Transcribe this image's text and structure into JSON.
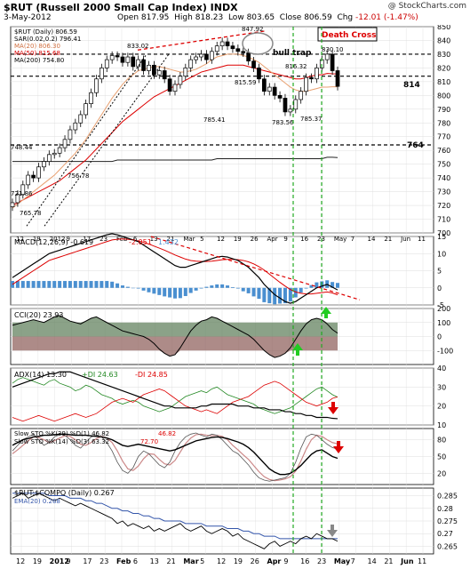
{
  "header": {
    "symbol_line": "$RUT (Russell 2000 Small Cap Index) INDX",
    "watermark": "@ StockCharts.com",
    "date": "3-May-2012",
    "open_label": "Open",
    "open": "817.95",
    "high_label": "High",
    "high": "818.23",
    "low_label": "Low",
    "low": "803.65",
    "close_label": "Close",
    "close": "806.59",
    "chg_label": "Chg",
    "chg": "-12.01 (-1.47%)"
  },
  "x_labels": [
    "12",
    "19",
    "2012",
    "9",
    "17",
    "23",
    "Feb",
    "6",
    "13",
    "21",
    "Mar",
    "5",
    "12",
    "19",
    "26",
    "Apr",
    "9",
    "16",
    "23",
    "May",
    "7",
    "14",
    "21",
    "Jun",
    "11"
  ],
  "colors": {
    "price_up": "#000000",
    "red_line": "#dd0000",
    "green_line": "#22aa22",
    "hist": "#4a8fd0",
    "grid": "#dddddd"
  },
  "chart_data": [
    {
      "type": "candlestick",
      "panel": "price",
      "legend": [
        "$RUT (Daily) 806.59",
        "SAR(0.02,0.2) 796.41",
        "MA(20) 806.30",
        "MA(50) 815.68",
        "MA(200) 754.80"
      ],
      "ylim": [
        700,
        850
      ],
      "yticks": [
        700,
        710,
        720,
        730,
        740,
        750,
        760,
        770,
        780,
        790,
        800,
        810,
        820,
        830,
        840,
        850
      ],
      "annotations": [
        "bull trap",
        "Death Cross",
        "814",
        "764",
        "833.02",
        "847.92",
        "830.10",
        "815.59",
        "816.32",
        "785.41",
        "783.56",
        "785.37",
        "748.44",
        "765.78",
        "721.86",
        "756.78"
      ],
      "horizontal_levels": [
        830,
        814,
        764
      ],
      "closes": [
        722,
        728,
        735,
        742,
        740,
        748,
        752,
        757,
        758,
        762,
        768,
        775,
        780,
        786,
        794,
        802,
        812,
        820,
        826,
        829,
        828,
        824,
        828,
        821,
        826,
        818,
        822,
        815,
        818,
        812,
        803,
        808,
        814,
        820,
        826,
        828,
        830,
        826,
        832,
        836,
        839,
        836,
        834,
        832,
        831,
        825,
        820,
        812,
        803,
        806,
        800,
        798,
        788,
        790,
        797,
        803,
        813,
        812,
        820,
        826,
        830,
        818,
        806.59
      ],
      "ma20": [
        718,
        721,
        724,
        727,
        730,
        733,
        736,
        739,
        742,
        746,
        750,
        754,
        758,
        763,
        768,
        774,
        780,
        786,
        792,
        798,
        803,
        808,
        812,
        815,
        818,
        819,
        820,
        821,
        821,
        820,
        819,
        818,
        817,
        817,
        818,
        819,
        821,
        823,
        826,
        828,
        829,
        830,
        830,
        830,
        829,
        828,
        826,
        824,
        821,
        818,
        815,
        812,
        809,
        806,
        804,
        803,
        803,
        804,
        805,
        806,
        806,
        806.3,
        806.3
      ],
      "ma50": [
        720,
        722,
        724,
        726,
        728,
        730,
        732,
        734,
        736,
        738,
        741,
        744,
        747,
        750,
        753,
        757,
        761,
        765,
        769,
        773,
        777,
        781,
        784,
        787,
        790,
        793,
        796,
        799,
        801,
        803,
        805,
        807,
        809,
        811,
        813,
        815,
        817,
        818,
        819,
        820,
        821,
        822,
        822,
        822,
        822,
        821,
        820,
        819,
        818,
        817,
        816,
        815,
        814,
        813,
        812,
        812,
        813,
        814,
        815,
        815,
        816,
        815.7,
        815.68
      ],
      "ma200": [
        752,
        752,
        752,
        752,
        752,
        752,
        752,
        752,
        752,
        752,
        752,
        752,
        752,
        752,
        752,
        752,
        752,
        752,
        752,
        752,
        753,
        753,
        753,
        753,
        753,
        753,
        753,
        753,
        753,
        753,
        753,
        753,
        753,
        753,
        753,
        753,
        753,
        753,
        753,
        754,
        754,
        754,
        754,
        754,
        754,
        754,
        754,
        754,
        754,
        754,
        754,
        754,
        754,
        754,
        754,
        754,
        754,
        754,
        754,
        754,
        755,
        755,
        754.8
      ]
    },
    {
      "type": "line",
      "panel": "macd",
      "legend": [
        "MACD(12,26,9) -0.619",
        "-2.051",
        "1.432"
      ],
      "ylim": [
        -5,
        15
      ],
      "yticks": [
        -5,
        0,
        5,
        10,
        15
      ],
      "macd": [
        3,
        4,
        5,
        6,
        7,
        8,
        9,
        10,
        10.5,
        11,
        11.5,
        12,
        12.5,
        13,
        13.5,
        14,
        14.5,
        15,
        15.5,
        15.8,
        15.5,
        15,
        14.5,
        14,
        13.5,
        12.5,
        11.5,
        10.5,
        9.5,
        8.5,
        7.5,
        6.5,
        6,
        6,
        6.5,
        7,
        7.5,
        8,
        8.5,
        9,
        9.2,
        9,
        8.5,
        8,
        7,
        6,
        4.5,
        3,
        1,
        -0.5,
        -2,
        -3,
        -4,
        -4.5,
        -4,
        -3,
        -2,
        -1,
        0,
        0.5,
        1,
        0.2,
        -0.619
      ],
      "signal": [
        1,
        2,
        3,
        4,
        5,
        6,
        7,
        8,
        8.5,
        9,
        9.5,
        10,
        10.5,
        11,
        11.5,
        12,
        12.5,
        13,
        13.5,
        14,
        14.2,
        14.3,
        14.2,
        14,
        13.7,
        13.3,
        12.8,
        12.2,
        11.6,
        11,
        10.3,
        9.6,
        9,
        8.4,
        8,
        7.8,
        7.7,
        7.7,
        7.8,
        8,
        8.2,
        8.3,
        8.3,
        8.2,
        8,
        7.6,
        7,
        6.2,
        5.2,
        4,
        2.8,
        1.6,
        0.5,
        -0.5,
        -1.2,
        -1.6,
        -1.8,
        -1.8,
        -1.6,
        -1.4,
        -1.2,
        -1.5,
        -2.051
      ],
      "histogram": [
        2,
        2,
        2,
        2,
        2,
        2,
        2,
        2,
        2,
        2,
        2,
        2,
        2,
        2,
        2,
        2,
        2,
        2,
        2,
        1.8,
        1.3,
        0.7,
        0.3,
        0,
        -0.2,
        -0.8,
        -1.3,
        -1.7,
        -2.1,
        -2.5,
        -2.8,
        -3.1,
        -3,
        -2.4,
        -1.5,
        -0.8,
        -0.2,
        0.3,
        0.7,
        1,
        1,
        0.7,
        0.2,
        -0.2,
        -1,
        -1.6,
        -2.5,
        -3.2,
        -4.2,
        -4.5,
        -4.8,
        -4.6,
        -4.5,
        -4,
        -2.8,
        -1.4,
        -0.2,
        0.8,
        1.6,
        1.9,
        2.2,
        1.7,
        1.432
      ]
    },
    {
      "type": "line",
      "panel": "cci",
      "legend": [
        "CCI(20) 23.93"
      ],
      "ylim": [
        -200,
        200
      ],
      "yticks": [
        -100,
        0,
        100,
        200
      ],
      "values": [
        80,
        90,
        100,
        110,
        120,
        110,
        100,
        120,
        140,
        150,
        130,
        110,
        100,
        90,
        110,
        130,
        140,
        120,
        100,
        80,
        60,
        40,
        30,
        20,
        10,
        0,
        -20,
        -50,
        -90,
        -120,
        -140,
        -130,
        -80,
        -20,
        40,
        80,
        110,
        120,
        140,
        130,
        110,
        90,
        70,
        50,
        30,
        10,
        -20,
        -60,
        -100,
        -130,
        -150,
        -140,
        -120,
        -80,
        -20,
        40,
        90,
        120,
        130,
        120,
        90,
        50,
        23.93
      ]
    },
    {
      "type": "line",
      "panel": "adx",
      "legend": [
        "ADX(14) 13.30",
        "+DI 24.63",
        "-DI 24.85"
      ],
      "ylim": [
        10,
        40
      ],
      "yticks": [
        10,
        20,
        30,
        40
      ],
      "adx": [
        30,
        31,
        32,
        33,
        34,
        35,
        36,
        37,
        37,
        38,
        38,
        38,
        37,
        36,
        35,
        34,
        33,
        32,
        31,
        30,
        29,
        28,
        27,
        26,
        25,
        24,
        23,
        22,
        21,
        20,
        20,
        19,
        19,
        19,
        19,
        19,
        20,
        20,
        21,
        21,
        21,
        21,
        21,
        20,
        20,
        20,
        19,
        19,
        19,
        18,
        18,
        18,
        17,
        17,
        16,
        16,
        15,
        15,
        14,
        14,
        14,
        13.5,
        13.3
      ],
      "plus_di": [
        32,
        34,
        35,
        34,
        33,
        32,
        31,
        33,
        34,
        32,
        31,
        30,
        28,
        29,
        31,
        30,
        28,
        26,
        25,
        24,
        22,
        21,
        22,
        23,
        22,
        20,
        19,
        18,
        17,
        18,
        19,
        21,
        23,
        25,
        26,
        27,
        28,
        27,
        29,
        30,
        28,
        26,
        25,
        24,
        23,
        22,
        21,
        19,
        18,
        17,
        16,
        17,
        18,
        19,
        21,
        23,
        25,
        27,
        29,
        30,
        28,
        26,
        24.63
      ],
      "minus_di": [
        14,
        13,
        12,
        13,
        14,
        15,
        14,
        13,
        12,
        13,
        14,
        15,
        16,
        15,
        14,
        15,
        16,
        18,
        20,
        22,
        23,
        24,
        23,
        22,
        24,
        26,
        27,
        28,
        29,
        28,
        26,
        24,
        22,
        20,
        19,
        18,
        17,
        18,
        17,
        16,
        18,
        20,
        22,
        23,
        24,
        25,
        27,
        29,
        31,
        32,
        33,
        32,
        30,
        28,
        26,
        24,
        22,
        21,
        20,
        21,
        22,
        24,
        24.85
      ]
    },
    {
      "type": "line",
      "panel": "slowsto",
      "legend": [
        "Slow STO %K(39) %D(1) 46.82",
        "46.82",
        "Slow STO %K(14) %D(3) 63.32",
        "72.70"
      ],
      "ylim": [
        0,
        100
      ],
      "yticks": [
        20,
        50,
        80
      ],
      "sto39": [
        70,
        75,
        80,
        82,
        85,
        86,
        88,
        88,
        89,
        90,
        90,
        89,
        88,
        88,
        88,
        87,
        86,
        85,
        83,
        80,
        75,
        70,
        68,
        70,
        72,
        70,
        68,
        66,
        64,
        62,
        60,
        62,
        66,
        70,
        74,
        78,
        80,
        82,
        84,
        85,
        84,
        82,
        79,
        76,
        72,
        66,
        58,
        48,
        38,
        28,
        22,
        18,
        18,
        20,
        26,
        34,
        44,
        54,
        60,
        62,
        56,
        50,
        46.82
      ],
      "sto14_k": [
        60,
        70,
        80,
        85,
        90,
        80,
        70,
        75,
        85,
        90,
        88,
        80,
        70,
        65,
        75,
        85,
        88,
        85,
        75,
        60,
        40,
        25,
        20,
        30,
        50,
        60,
        55,
        45,
        35,
        30,
        40,
        60,
        75,
        85,
        90,
        92,
        88,
        85,
        90,
        88,
        80,
        70,
        60,
        55,
        45,
        35,
        22,
        12,
        8,
        6,
        8,
        10,
        12,
        20,
        40,
        65,
        85,
        90,
        88,
        80,
        72,
        66,
        63.32
      ],
      "sto14_d": [
        55,
        62,
        70,
        78,
        85,
        84,
        80,
        75,
        78,
        83,
        87,
        86,
        80,
        72,
        70,
        75,
        82,
        86,
        83,
        75,
        60,
        42,
        28,
        25,
        33,
        46,
        55,
        54,
        45,
        37,
        35,
        43,
        58,
        73,
        83,
        89,
        90,
        88,
        87,
        88,
        86,
        80,
        70,
        62,
        53,
        45,
        34,
        23,
        14,
        9,
        7,
        8,
        10,
        14,
        24,
        42,
        63,
        80,
        88,
        86,
        80,
        75,
        72.7
      ]
    },
    {
      "type": "line",
      "panel": "ratio",
      "legend": [
        "$RUT:$COMPQ (Daily) 0.267",
        "EMA(20) 0.268"
      ],
      "ylim": [
        0.262,
        0.288
      ],
      "yticks": [
        0.265,
        0.27,
        0.275,
        0.28,
        0.285
      ],
      "ratio": [
        0.284,
        0.285,
        0.286,
        0.284,
        0.285,
        0.286,
        0.285,
        0.284,
        0.283,
        0.284,
        0.283,
        0.282,
        0.281,
        0.282,
        0.281,
        0.28,
        0.279,
        0.278,
        0.277,
        0.276,
        0.274,
        0.275,
        0.273,
        0.274,
        0.273,
        0.272,
        0.273,
        0.271,
        0.272,
        0.271,
        0.272,
        0.273,
        0.274,
        0.272,
        0.271,
        0.272,
        0.273,
        0.271,
        0.27,
        0.271,
        0.272,
        0.271,
        0.269,
        0.27,
        0.268,
        0.267,
        0.266,
        0.265,
        0.264,
        0.266,
        0.267,
        0.265,
        0.266,
        0.267,
        0.266,
        0.268,
        0.269,
        0.268,
        0.27,
        0.269,
        0.268,
        0.268,
        0.267
      ],
      "ema20": [
        0.286,
        0.286,
        0.286,
        0.286,
        0.286,
        0.286,
        0.286,
        0.285,
        0.285,
        0.285,
        0.285,
        0.284,
        0.284,
        0.284,
        0.283,
        0.283,
        0.282,
        0.282,
        0.281,
        0.28,
        0.28,
        0.279,
        0.279,
        0.278,
        0.278,
        0.277,
        0.277,
        0.276,
        0.276,
        0.275,
        0.275,
        0.275,
        0.275,
        0.274,
        0.274,
        0.274,
        0.274,
        0.273,
        0.273,
        0.273,
        0.273,
        0.272,
        0.272,
        0.272,
        0.271,
        0.271,
        0.27,
        0.27,
        0.269,
        0.269,
        0.269,
        0.268,
        0.268,
        0.268,
        0.268,
        0.268,
        0.268,
        0.268,
        0.268,
        0.268,
        0.268,
        0.268,
        0.268
      ]
    }
  ]
}
